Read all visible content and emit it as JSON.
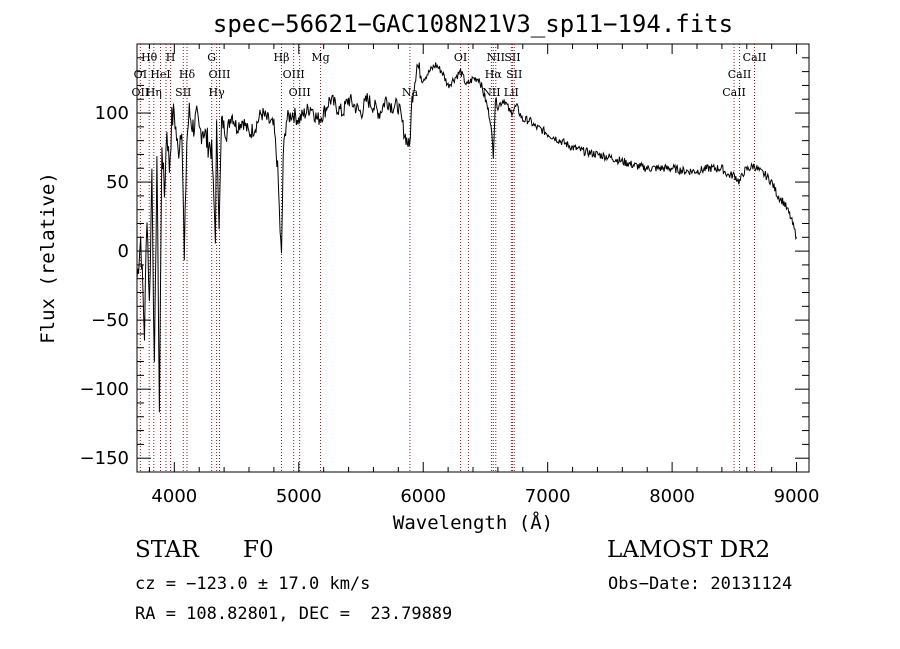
{
  "chart_data": {
    "type": "line",
    "title": "spec−56621−GAC108N21V3_sp11−194.fits",
    "xlabel": "Wavelength (Å)",
    "ylabel": "Flux (relative)",
    "xlim": [
      3700,
      9100
    ],
    "ylim": [
      -160,
      150
    ],
    "x_ticks": [
      4000,
      5000,
      6000,
      7000,
      8000,
      9000
    ],
    "x_tick_labels": [
      "4000",
      "5000",
      "6000",
      "7000",
      "8000",
      "9000"
    ],
    "y_ticks": [
      -150,
      -100,
      -50,
      0,
      50,
      100
    ],
    "y_tick_labels": [
      "−150",
      "−100",
      "−50",
      "0",
      "50",
      "100"
    ],
    "grid": false,
    "series": [
      {
        "values_desc": "spectrum",
        "x": [
          3700,
          3730,
          3760,
          3780,
          3800,
          3820,
          3840,
          3860,
          3880,
          3900,
          3920,
          3940,
          3960,
          3980,
          4000,
          4030,
          4060,
          4080,
          4100,
          4120,
          4150,
          4180,
          4200,
          4230,
          4260,
          4300,
          4330,
          4340,
          4360,
          4380,
          4420,
          4460,
          4500,
          4550,
          4600,
          4650,
          4700,
          4750,
          4800,
          4830,
          4850,
          4861,
          4875,
          4900,
          4950,
          5000,
          5050,
          5100,
          5150,
          5200,
          5250,
          5300,
          5350,
          5400,
          5450,
          5500,
          5550,
          5600,
          5650,
          5700,
          5750,
          5800,
          5850,
          5890,
          5910,
          5950,
          6000,
          6050,
          6100,
          6150,
          6200,
          6250,
          6300,
          6350,
          6400,
          6450,
          6500,
          6540,
          6563,
          6580,
          6600,
          6650,
          6700,
          6750,
          6800,
          6850,
          6900,
          6950,
          7000,
          7100,
          7200,
          7300,
          7400,
          7500,
          7600,
          7700,
          7800,
          7900,
          8000,
          8100,
          8200,
          8300,
          8400,
          8450,
          8500,
          8542,
          8580,
          8620,
          8662,
          8700,
          8750,
          8800,
          8850,
          8900,
          8950,
          9000
        ],
        "y": [
          -20,
          10,
          -60,
          30,
          -40,
          60,
          -90,
          70,
          -115,
          80,
          40,
          90,
          60,
          95,
          100,
          70,
          95,
          -10,
          80,
          100,
          90,
          95,
          85,
          90,
          80,
          75,
          10,
          90,
          20,
          95,
          85,
          100,
          90,
          95,
          85,
          90,
          100,
          95,
          90,
          60,
          15,
          -5,
          70,
          95,
          100,
          95,
          100,
          105,
          95,
          100,
          110,
          105,
          100,
          110,
          105,
          100,
          110,
          105,
          100,
          110,
          105,
          105,
          85,
          75,
          110,
          135,
          125,
          130,
          135,
          130,
          120,
          125,
          130,
          120,
          125,
          125,
          110,
          95,
          70,
          110,
          105,
          110,
          100,
          105,
          95,
          95,
          90,
          88,
          85,
          80,
          75,
          72,
          70,
          68,
          65,
          62,
          60,
          60,
          60,
          58,
          58,
          60,
          60,
          55,
          55,
          50,
          58,
          60,
          62,
          58,
          55,
          50,
          40,
          35,
          25,
          10
        ]
      }
    ],
    "line_labels": {
      "top": [
        {
          "text": "Hθ",
          "x": 3798
        },
        {
          "text": "H",
          "x": 3970
        },
        {
          "text": "G",
          "x": 4300
        },
        {
          "text": "Hβ",
          "x": 4861
        },
        {
          "text": "Mg",
          "x": 5175
        },
        {
          "text": "OI",
          "x": 6300
        },
        {
          "text": "NII",
          "x": 6583
        },
        {
          "text": "SII",
          "x": 6717
        },
        {
          "text": "CaII",
          "x": 8662
        }
      ],
      "mid": [
        {
          "text": "OI",
          "x": 3727
        },
        {
          "text": "HeI",
          "x": 3889
        },
        {
          "text": "Hδ",
          "x": 4102
        },
        {
          "text": "OIII",
          "x": 4363
        },
        {
          "text": "OIII",
          "x": 4959
        },
        {
          "text": "Hα",
          "x": 6563
        },
        {
          "text": "SII",
          "x": 6731
        },
        {
          "text": "CaII",
          "x": 8542
        }
      ],
      "low": [
        {
          "text": "OII",
          "x": 3727
        },
        {
          "text": "Hη",
          "x": 3835
        },
        {
          "text": "SII",
          "x": 4072
        },
        {
          "text": "Hγ",
          "x": 4340
        },
        {
          "text": "OIII",
          "x": 5007
        },
        {
          "text": "Na",
          "x": 5893
        },
        {
          "text": "NII",
          "x": 6548
        },
        {
          "text": "LiI",
          "x": 6708
        },
        {
          "text": "CaII",
          "x": 8498
        }
      ]
    },
    "marker_lines_x": [
      3727,
      3798,
      3835,
      3889,
      3933,
      3970,
      4072,
      4102,
      4300,
      4340,
      4363,
      4861,
      4959,
      5007,
      5175,
      5893,
      6300,
      6363,
      6548,
      6563,
      6583,
      6708,
      6717,
      6731,
      8498,
      8542,
      8662
    ]
  },
  "info": {
    "object_type": "STAR",
    "subclass": "F0",
    "survey": "LAMOST DR2",
    "velocity": "cz = −123.0 ± 17.0 km/s",
    "obs_date": "Obs−Date: 20131124",
    "coords": "RA = 108.82801, DEC =  23.79889"
  }
}
